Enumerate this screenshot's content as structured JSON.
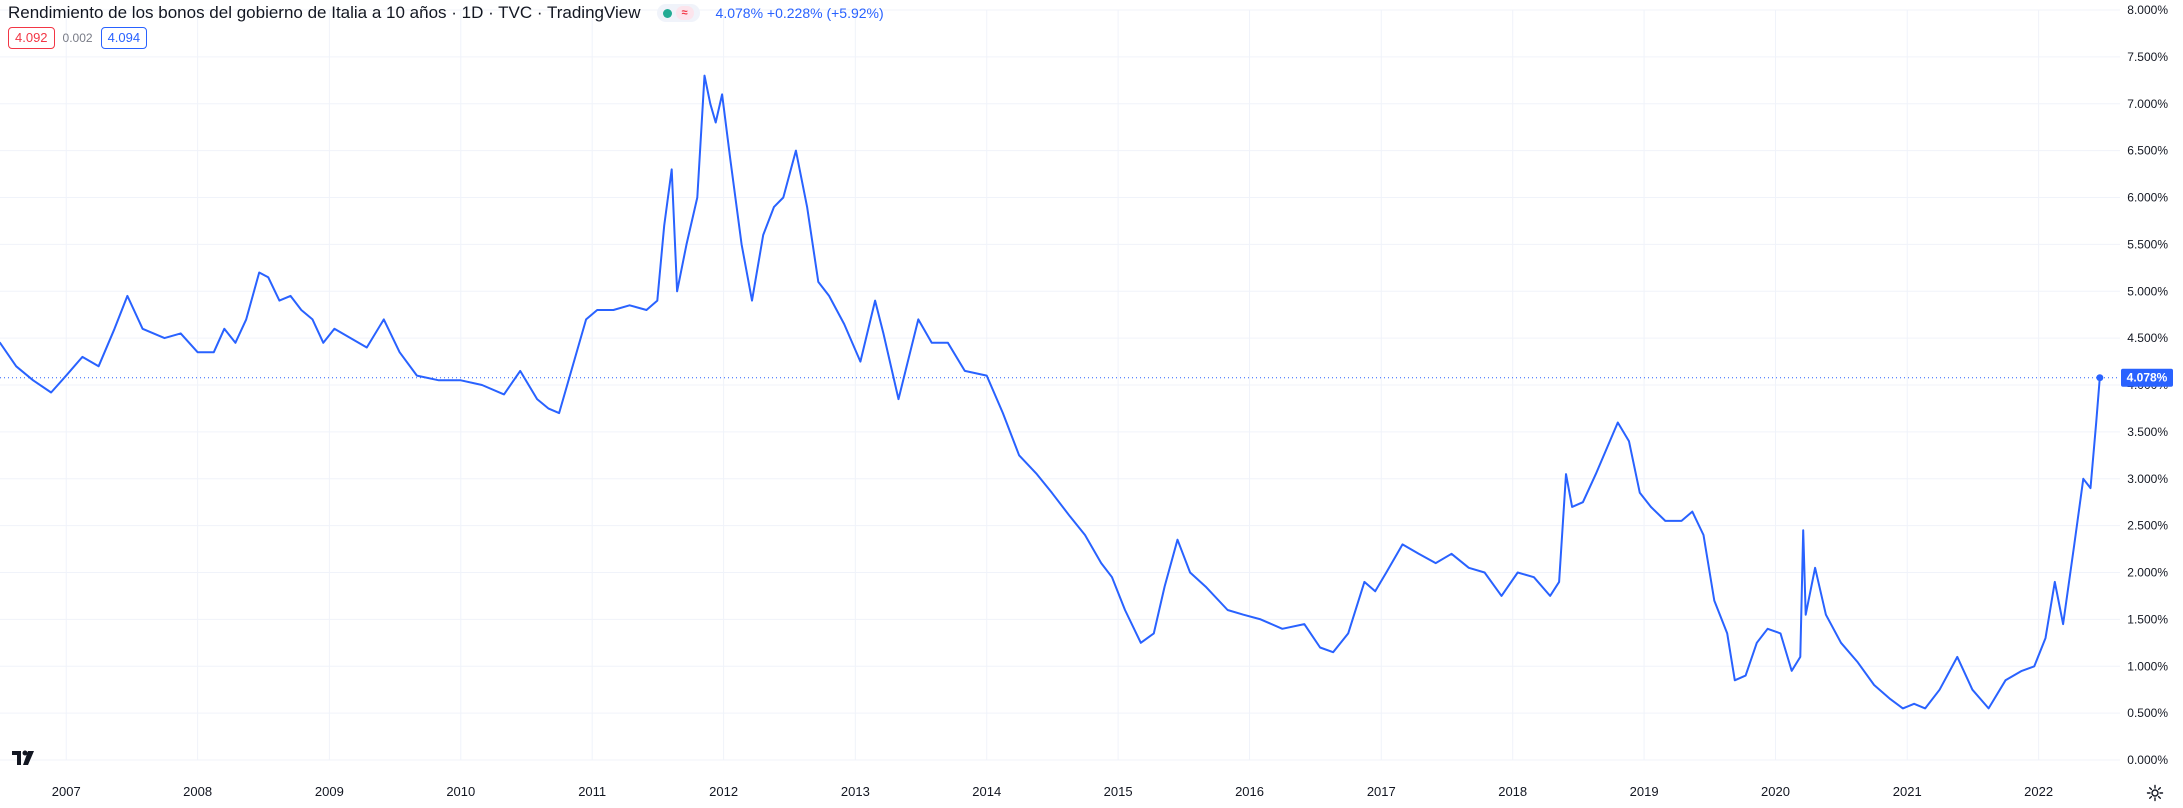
{
  "header": {
    "title": "Rendimiento de los bonos del gobierno de Italia a 10 años · 1D · TVC · TradingView",
    "market_status_icon": "green-dot-icon",
    "delay_icon": "delay-badge-icon",
    "delay_symbol": "≈",
    "change_text": "4.078% +0.228% (+5.92%)"
  },
  "quote": {
    "bid": "4.092",
    "spread": "0.002",
    "ask": "4.094"
  },
  "last_price_label": "4.078%",
  "colors": {
    "line": "#2962ff",
    "grid": "#f0f3fa",
    "axis_text": "#131722",
    "bid": "#f23645",
    "ask": "#2962ff"
  },
  "icons": {
    "logo": "tradingview-logo-icon",
    "settings": "gear-icon"
  },
  "chart_data": {
    "type": "line",
    "title": "Rendimiento de los bonos del gobierno de Italia a 10 años",
    "xlabel": "",
    "ylabel": "",
    "x_tick_labels": [
      "2007",
      "2008",
      "2009",
      "2010",
      "2011",
      "2012",
      "2013",
      "2014",
      "2015",
      "2016",
      "2017",
      "2018",
      "2019",
      "2020",
      "2021",
      "2022"
    ],
    "y_tick_labels": [
      "0.000%",
      "0.500%",
      "1.000%",
      "1.500%",
      "2.000%",
      "2.500%",
      "3.000%",
      "3.500%",
      "4.000%",
      "4.500%",
      "5.000%",
      "5.500%",
      "6.000%",
      "6.500%",
      "7.000%",
      "7.500%",
      "8.000%"
    ],
    "ylim": [
      0,
      8
    ],
    "xlim": [
      "2006-07-01",
      "2022-08-15"
    ],
    "grid": true,
    "last_value": 4.078,
    "series": [
      {
        "values": [
          [
            "2006-07-01",
            4.45
          ],
          [
            "2006-08-15",
            4.2
          ],
          [
            "2006-10-01",
            4.05
          ],
          [
            "2006-11-20",
            3.92
          ],
          [
            "2007-01-01",
            4.1
          ],
          [
            "2007-02-15",
            4.3
          ],
          [
            "2007-04-01",
            4.2
          ],
          [
            "2007-05-15",
            4.6
          ],
          [
            "2007-06-20",
            4.95
          ],
          [
            "2007-08-01",
            4.6
          ],
          [
            "2007-10-01",
            4.5
          ],
          [
            "2007-11-15",
            4.55
          ],
          [
            "2008-01-01",
            4.35
          ],
          [
            "2008-02-15",
            4.35
          ],
          [
            "2008-03-15",
            4.6
          ],
          [
            "2008-04-15",
            4.45
          ],
          [
            "2008-05-15",
            4.7
          ],
          [
            "2008-06-20",
            5.2
          ],
          [
            "2008-07-15",
            5.15
          ],
          [
            "2008-08-15",
            4.9
          ],
          [
            "2008-09-15",
            4.95
          ],
          [
            "2008-10-15",
            4.8
          ],
          [
            "2008-11-15",
            4.7
          ],
          [
            "2008-12-15",
            4.45
          ],
          [
            "2009-01-15",
            4.6
          ],
          [
            "2009-03-01",
            4.5
          ],
          [
            "2009-04-15",
            4.4
          ],
          [
            "2009-06-01",
            4.7
          ],
          [
            "2009-07-15",
            4.35
          ],
          [
            "2009-09-01",
            4.1
          ],
          [
            "2009-11-01",
            4.05
          ],
          [
            "2010-01-01",
            4.05
          ],
          [
            "2010-03-01",
            4.0
          ],
          [
            "2010-05-01",
            3.9
          ],
          [
            "2010-06-15",
            4.15
          ],
          [
            "2010-08-01",
            3.85
          ],
          [
            "2010-09-01",
            3.75
          ],
          [
            "2010-10-01",
            3.7
          ],
          [
            "2010-11-15",
            4.3
          ],
          [
            "2010-12-15",
            4.7
          ],
          [
            "2011-01-15",
            4.8
          ],
          [
            "2011-03-01",
            4.8
          ],
          [
            "2011-04-15",
            4.85
          ],
          [
            "2011-06-01",
            4.8
          ],
          [
            "2011-07-01",
            4.9
          ],
          [
            "2011-07-20",
            5.7
          ],
          [
            "2011-08-10",
            6.3
          ],
          [
            "2011-08-25",
            5.0
          ],
          [
            "2011-09-20",
            5.5
          ],
          [
            "2011-10-20",
            6.0
          ],
          [
            "2011-11-09",
            7.3
          ],
          [
            "2011-11-25",
            7.0
          ],
          [
            "2011-12-10",
            6.8
          ],
          [
            "2011-12-28",
            7.1
          ],
          [
            "2012-01-20",
            6.4
          ],
          [
            "2012-02-20",
            5.5
          ],
          [
            "2012-03-20",
            4.9
          ],
          [
            "2012-04-20",
            5.6
          ],
          [
            "2012-05-20",
            5.9
          ],
          [
            "2012-06-15",
            6.0
          ],
          [
            "2012-07-20",
            6.5
          ],
          [
            "2012-08-20",
            5.9
          ],
          [
            "2012-09-20",
            5.1
          ],
          [
            "2012-10-20",
            4.95
          ],
          [
            "2012-12-01",
            4.65
          ],
          [
            "2013-01-15",
            4.25
          ],
          [
            "2013-02-25",
            4.9
          ],
          [
            "2013-03-20",
            4.55
          ],
          [
            "2013-05-01",
            3.85
          ],
          [
            "2013-06-25",
            4.7
          ],
          [
            "2013-08-01",
            4.45
          ],
          [
            "2013-09-15",
            4.45
          ],
          [
            "2013-11-01",
            4.15
          ],
          [
            "2014-01-01",
            4.1
          ],
          [
            "2014-02-15",
            3.7
          ],
          [
            "2014-04-01",
            3.25
          ],
          [
            "2014-05-20",
            3.05
          ],
          [
            "2014-07-01",
            2.85
          ],
          [
            "2014-08-20",
            2.6
          ],
          [
            "2014-10-01",
            2.4
          ],
          [
            "2014-11-15",
            2.1
          ],
          [
            "2014-12-15",
            1.95
          ],
          [
            "2015-01-20",
            1.6
          ],
          [
            "2015-03-05",
            1.25
          ],
          [
            "2015-04-10",
            1.35
          ],
          [
            "2015-05-10",
            1.85
          ],
          [
            "2015-06-15",
            2.35
          ],
          [
            "2015-07-20",
            2.0
          ],
          [
            "2015-09-01",
            1.85
          ],
          [
            "2015-11-01",
            1.6
          ],
          [
            "2015-12-15",
            1.55
          ],
          [
            "2016-02-01",
            1.5
          ],
          [
            "2016-04-01",
            1.4
          ],
          [
            "2016-06-01",
            1.45
          ],
          [
            "2016-07-15",
            1.2
          ],
          [
            "2016-08-20",
            1.15
          ],
          [
            "2016-10-01",
            1.35
          ],
          [
            "2016-11-15",
            1.9
          ],
          [
            "2016-12-15",
            1.8
          ],
          [
            "2017-01-15",
            2.0
          ],
          [
            "2017-03-01",
            2.3
          ],
          [
            "2017-04-15",
            2.2
          ],
          [
            "2017-06-01",
            2.1
          ],
          [
            "2017-07-15",
            2.2
          ],
          [
            "2017-09-01",
            2.05
          ],
          [
            "2017-10-15",
            2.0
          ],
          [
            "2017-12-01",
            1.75
          ],
          [
            "2018-01-15",
            2.0
          ],
          [
            "2018-03-01",
            1.95
          ],
          [
            "2018-04-15",
            1.75
          ],
          [
            "2018-05-10",
            1.9
          ],
          [
            "2018-05-29",
            3.05
          ],
          [
            "2018-06-15",
            2.7
          ],
          [
            "2018-07-15",
            2.75
          ],
          [
            "2018-08-20",
            3.05
          ],
          [
            "2018-10-20",
            3.6
          ],
          [
            "2018-11-20",
            3.4
          ],
          [
            "2018-12-20",
            2.85
          ],
          [
            "2019-01-20",
            2.7
          ],
          [
            "2019-03-01",
            2.55
          ],
          [
            "2019-04-15",
            2.55
          ],
          [
            "2019-05-15",
            2.65
          ],
          [
            "2019-06-15",
            2.4
          ],
          [
            "2019-07-15",
            1.7
          ],
          [
            "2019-08-20",
            1.35
          ],
          [
            "2019-09-10",
            0.85
          ],
          [
            "2019-10-10",
            0.9
          ],
          [
            "2019-11-10",
            1.25
          ],
          [
            "2019-12-10",
            1.4
          ],
          [
            "2020-01-15",
            1.35
          ],
          [
            "2020-02-15",
            0.95
          ],
          [
            "2020-03-10",
            1.1
          ],
          [
            "2020-03-18",
            2.45
          ],
          [
            "2020-03-25",
            1.55
          ],
          [
            "2020-04-20",
            2.05
          ],
          [
            "2020-05-20",
            1.55
          ],
          [
            "2020-07-01",
            1.25
          ],
          [
            "2020-08-15",
            1.05
          ],
          [
            "2020-10-01",
            0.8
          ],
          [
            "2020-11-15",
            0.65
          ],
          [
            "2020-12-20",
            0.55
          ],
          [
            "2021-01-20",
            0.6
          ],
          [
            "2021-02-20",
            0.55
          ],
          [
            "2021-04-01",
            0.75
          ],
          [
            "2021-05-20",
            1.1
          ],
          [
            "2021-07-01",
            0.75
          ],
          [
            "2021-08-15",
            0.55
          ],
          [
            "2021-10-01",
            0.85
          ],
          [
            "2021-11-15",
            0.95
          ],
          [
            "2021-12-20",
            1.0
          ],
          [
            "2022-01-20",
            1.3
          ],
          [
            "2022-02-15",
            1.9
          ],
          [
            "2022-03-10",
            1.45
          ],
          [
            "2022-04-10",
            2.3
          ],
          [
            "2022-05-05",
            3.0
          ],
          [
            "2022-05-25",
            2.9
          ],
          [
            "2022-06-10",
            3.6
          ],
          [
            "2022-06-20",
            4.078
          ]
        ]
      }
    ]
  }
}
